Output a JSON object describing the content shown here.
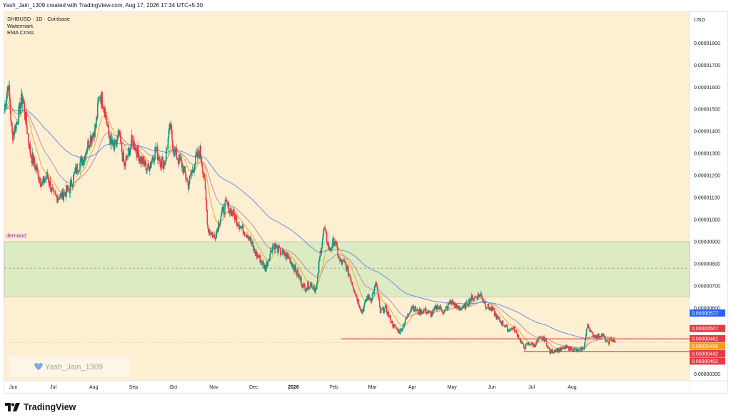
{
  "header": {
    "created_text": "Yash_Jain_1309 created with TradingView.com, Aug 17, 2026 17:34 UTC+5:30"
  },
  "legend": {
    "symbol": "SHIBUSD · 1D · Coinbase",
    "line2": "Watermark",
    "line3": "EMA Cross"
  },
  "zone_label": "demand",
  "watermark_text": "Yash_Jain_1309",
  "currency": "USD",
  "brand": {
    "name": "TradingView",
    "logo": "tradingview-logo-icon"
  },
  "colors": {
    "background": "#fdf0d2",
    "demand_zone": "#dcebc2",
    "up_candle": "#089981",
    "down_candle": "#f23645",
    "ema_fast": "#f0a830",
    "ema_mid": "#c08ab0",
    "ema_slow": "#6b8fe0",
    "level_line": "#e53945"
  },
  "chart_data": {
    "type": "candlestick",
    "symbol": "SHIBUSD",
    "interval": "1D",
    "exchange": "Coinbase",
    "x_labels": [
      "Jun",
      "Jul",
      "Aug",
      "Sep",
      "Oct",
      "Nov",
      "Dec",
      "2026",
      "Feb",
      "Mar",
      "Apr",
      "May",
      "Jun",
      "Jul",
      "Aug"
    ],
    "x_label_days": [
      14,
      75,
      137,
      198,
      259,
      321,
      382,
      443,
      505,
      564,
      625,
      686,
      747,
      808,
      870
    ],
    "y_ticks": [
      "0.00000300",
      "0.00000600",
      "0.00000700",
      "0.00000800",
      "0.00000900",
      "0.00001000",
      "0.00001100",
      "0.00001200",
      "0.00001300",
      "0.00001400",
      "0.00001500",
      "0.00001600",
      "0.00001700",
      "0.00001800"
    ],
    "y_tick_values": [
      3e-06,
      6e-06,
      7e-06,
      8e-06,
      9e-06,
      1e-05,
      1.1e-05,
      1.2e-05,
      1.3e-05,
      1.4e-05,
      1.5e-05,
      1.6e-05,
      1.7e-05,
      1.8e-05
    ],
    "ylim": [
      2.7e-06,
      1.94e-05
    ],
    "x_range_days": [
      0,
      1050
    ],
    "demand_zone": {
      "low": 6.5e-06,
      "high": 9e-06,
      "mid": 7.8e-06
    },
    "support_lines": [
      {
        "price": 4.6e-06,
        "from_day": 516,
        "to_day": 1050
      },
      {
        "price": 4.02e-06,
        "from_day": 796,
        "to_day": 1050
      }
    ],
    "price_labels": [
      {
        "value": "0.00000577",
        "price": 5.77e-06,
        "color": "#2962ff"
      },
      {
        "value": "0.00000507",
        "price": 5.07e-06,
        "color": "#e53945"
      },
      {
        "value": "0.00000461",
        "price": 4.61e-06,
        "color": "#e53945"
      },
      {
        "value": "0.00000456",
        "price": 4.56e-06,
        "color": "#f59d1a"
      },
      {
        "value": "0.00000442",
        "price": 4.42e-06,
        "color": "#e53945"
      },
      {
        "value": "0.00000402",
        "price": 4.02e-06,
        "color": "#e53945"
      }
    ],
    "close_anchors": [
      [
        0,
        15.0
      ],
      [
        6,
        16.2
      ],
      [
        12,
        13.8
      ],
      [
        18,
        14.3
      ],
      [
        28,
        15.6
      ],
      [
        40,
        13.0
      ],
      [
        58,
        11.6
      ],
      [
        66,
        12.0
      ],
      [
        76,
        11.0
      ],
      [
        88,
        11.1
      ],
      [
        100,
        11.4
      ],
      [
        112,
        12.4
      ],
      [
        122,
        12.8
      ],
      [
        130,
        13.6
      ],
      [
        140,
        14.2
      ],
      [
        146,
        15.7
      ],
      [
        153,
        15.2
      ],
      [
        160,
        13.8
      ],
      [
        168,
        13.2
      ],
      [
        176,
        13.8
      ],
      [
        184,
        12.4
      ],
      [
        196,
        13.6
      ],
      [
        208,
        12.8
      ],
      [
        220,
        12.3
      ],
      [
        232,
        13.2
      ],
      [
        240,
        12.6
      ],
      [
        246,
        12.6
      ],
      [
        254,
        14.2
      ],
      [
        260,
        13.1
      ],
      [
        272,
        12.5
      ],
      [
        282,
        11.6
      ],
      [
        292,
        12.6
      ],
      [
        300,
        13.1
      ],
      [
        306,
        12.0
      ],
      [
        312,
        9.6
      ],
      [
        322,
        9.2
      ],
      [
        332,
        10.2
      ],
      [
        340,
        10.7
      ],
      [
        352,
        10.2
      ],
      [
        364,
        9.6
      ],
      [
        374,
        9.3
      ],
      [
        384,
        8.5
      ],
      [
        392,
        8.2
      ],
      [
        400,
        7.8
      ],
      [
        412,
        8.9
      ],
      [
        424,
        8.5
      ],
      [
        436,
        8.3
      ],
      [
        448,
        7.6
      ],
      [
        460,
        6.9
      ],
      [
        470,
        7.1
      ],
      [
        478,
        6.8
      ],
      [
        484,
        8.5
      ],
      [
        490,
        9.6
      ],
      [
        498,
        8.6
      ],
      [
        506,
        9.1
      ],
      [
        514,
        8.1
      ],
      [
        522,
        8.0
      ],
      [
        530,
        7.4
      ],
      [
        540,
        6.5
      ],
      [
        548,
        5.8
      ],
      [
        556,
        6.5
      ],
      [
        562,
        6.4
      ],
      [
        570,
        7.1
      ],
      [
        576,
        5.8
      ],
      [
        584,
        6.0
      ],
      [
        596,
        5.2
      ],
      [
        606,
        4.9
      ],
      [
        616,
        5.5
      ],
      [
        624,
        6.1
      ],
      [
        634,
        5.8
      ],
      [
        644,
        5.9
      ],
      [
        654,
        5.7
      ],
      [
        664,
        6.1
      ],
      [
        674,
        5.8
      ],
      [
        684,
        6.3
      ],
      [
        694,
        6.0
      ],
      [
        704,
        6.0
      ],
      [
        714,
        6.4
      ],
      [
        722,
        6.5
      ],
      [
        730,
        6.6
      ],
      [
        738,
        6.1
      ],
      [
        748,
        5.9
      ],
      [
        756,
        5.5
      ],
      [
        764,
        5.3
      ],
      [
        772,
        5.0
      ],
      [
        780,
        5.1
      ],
      [
        788,
        4.7
      ],
      [
        796,
        4.2
      ],
      [
        804,
        4.4
      ],
      [
        812,
        4.3
      ],
      [
        820,
        4.6
      ],
      [
        828,
        4.6
      ],
      [
        836,
        4.0
      ],
      [
        844,
        4.1
      ],
      [
        852,
        4.1
      ],
      [
        860,
        4.2
      ],
      [
        870,
        4.15
      ],
      [
        880,
        4.05
      ],
      [
        888,
        4.2
      ],
      [
        894,
        5.3
      ],
      [
        900,
        4.8
      ],
      [
        908,
        4.7
      ],
      [
        916,
        4.8
      ],
      [
        924,
        4.4
      ],
      [
        930,
        4.6
      ],
      [
        936,
        4.4
      ]
    ],
    "close_anchor_unit": "USD × 1e-6"
  }
}
